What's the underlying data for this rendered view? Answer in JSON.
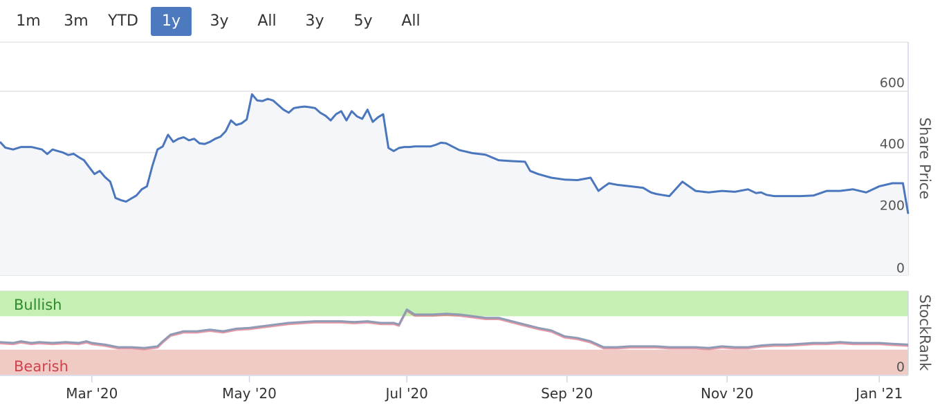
{
  "range_selector": {
    "buttons": [
      {
        "label": "1m",
        "active": false
      },
      {
        "label": "3m",
        "active": false
      },
      {
        "label": "YTD",
        "active": false
      },
      {
        "label": "1y",
        "active": true
      },
      {
        "label": "3y",
        "active": false
      },
      {
        "label": "All",
        "active": false
      },
      {
        "label": "3y",
        "active": false
      },
      {
        "label": "5y",
        "active": false
      },
      {
        "label": "All",
        "active": false
      }
    ],
    "active_color": "#4d7abf"
  },
  "colors": {
    "price_line": "#4a76bd",
    "price_fill": "#f5f6fa",
    "rank_line": "#8f9bb5",
    "bullish_band": "#c6efb3",
    "bearish_band": "#f0cbc5",
    "bullish_text": "#2f8a2f",
    "bearish_text": "#d0414a",
    "below_line": "#d9465a"
  },
  "chart_data": [
    {
      "type": "line",
      "ylabel": "Share Price",
      "ylim": [
        0,
        760
      ],
      "yticks": [
        "0",
        "200",
        "400",
        "600"
      ],
      "grid": true,
      "x_ticks": [
        "Mar '20",
        "May '20",
        "Jul '20",
        "Sep '20",
        "Nov '20",
        "Jan '21"
      ],
      "x_range": [
        0,
        346
      ],
      "x_tick_positions": [
        35,
        95,
        155,
        216,
        277,
        335
      ],
      "series": [
        {
          "x": [
            0,
            2,
            5,
            8,
            12,
            16,
            18,
            20,
            22,
            24,
            26,
            28,
            30,
            32,
            34,
            36,
            38,
            40,
            42,
            44,
            46,
            48,
            50,
            52,
            54,
            56,
            58,
            60,
            62,
            64,
            66,
            68,
            70,
            72,
            74,
            76,
            78,
            80,
            82,
            84,
            86,
            88,
            90,
            92,
            94,
            96,
            98,
            100,
            102,
            104,
            106,
            108,
            110,
            112,
            114,
            116,
            118,
            120,
            122,
            124,
            126,
            128,
            130,
            132,
            134,
            136,
            138,
            140,
            142,
            144,
            146,
            148,
            150,
            152,
            154,
            156,
            158,
            160,
            162,
            164,
            166,
            168,
            170,
            175,
            180,
            185,
            190,
            195,
            200,
            202,
            205,
            210,
            215,
            220,
            225,
            228,
            230,
            232,
            235,
            240,
            245,
            248,
            250,
            252,
            255,
            260,
            265,
            270,
            275,
            280,
            285,
            288,
            290,
            292,
            295,
            300,
            305,
            310,
            315,
            320,
            325,
            330,
            335,
            340,
            344,
            346
          ],
          "values": [
            435,
            416,
            410,
            418,
            418,
            410,
            395,
            410,
            405,
            400,
            392,
            396,
            385,
            375,
            352,
            330,
            340,
            320,
            305,
            252,
            245,
            240,
            250,
            260,
            280,
            290,
            355,
            410,
            420,
            458,
            435,
            445,
            450,
            440,
            445,
            430,
            428,
            435,
            445,
            452,
            470,
            505,
            490,
            495,
            508,
            590,
            570,
            568,
            575,
            570,
            555,
            540,
            530,
            545,
            548,
            550,
            548,
            545,
            530,
            520,
            505,
            525,
            535,
            505,
            535,
            518,
            510,
            540,
            500,
            515,
            525,
            415,
            405,
            415,
            418,
            418,
            420,
            420,
            420,
            420,
            425,
            432,
            430,
            408,
            398,
            393,
            375,
            372,
            370,
            340,
            330,
            318,
            312,
            310,
            318,
            275,
            288,
            300,
            295,
            290,
            285,
            270,
            265,
            262,
            258,
            305,
            275,
            270,
            275,
            272,
            280,
            268,
            270,
            262,
            258,
            258,
            258,
            260,
            275,
            275,
            280,
            270,
            290,
            300,
            300,
            200
          ]
        }
      ]
    },
    {
      "type": "line",
      "ylabel": "StockRank",
      "yticks": [
        "0"
      ],
      "ylim": [
        0,
        100
      ],
      "bands": [
        {
          "label": "Bullish",
          "from": 70,
          "to": 100
        },
        {
          "label": "Bearish",
          "from": 0,
          "to": 30
        }
      ],
      "series": [
        {
          "x": [
            0,
            5,
            8,
            12,
            15,
            20,
            25,
            30,
            33,
            35,
            40,
            45,
            50,
            55,
            60,
            62,
            65,
            70,
            75,
            80,
            85,
            90,
            95,
            100,
            105,
            110,
            115,
            120,
            125,
            130,
            135,
            140,
            145,
            150,
            152,
            155,
            158,
            160,
            165,
            170,
            175,
            180,
            185,
            190,
            195,
            200,
            205,
            210,
            215,
            220,
            225,
            230,
            235,
            240,
            245,
            250,
            255,
            260,
            265,
            270,
            275,
            280,
            285,
            290,
            295,
            300,
            305,
            310,
            315,
            320,
            325,
            330,
            335,
            340,
            346
          ],
          "values": [
            39,
            38,
            40,
            38,
            39,
            38,
            39,
            38,
            40,
            38,
            36,
            33,
            33,
            32,
            34,
            40,
            48,
            52,
            52,
            54,
            52,
            55,
            56,
            58,
            60,
            62,
            63,
            64,
            64,
            64,
            63,
            64,
            62,
            62,
            60,
            78,
            72,
            72,
            72,
            73,
            72,
            70,
            68,
            68,
            64,
            60,
            56,
            53,
            46,
            44,
            40,
            33,
            33,
            34,
            34,
            34,
            33,
            33,
            33,
            32,
            34,
            33,
            33,
            35,
            36,
            36,
            37,
            38,
            38,
            39,
            38,
            38,
            38,
            37,
            36
          ]
        }
      ]
    }
  ]
}
